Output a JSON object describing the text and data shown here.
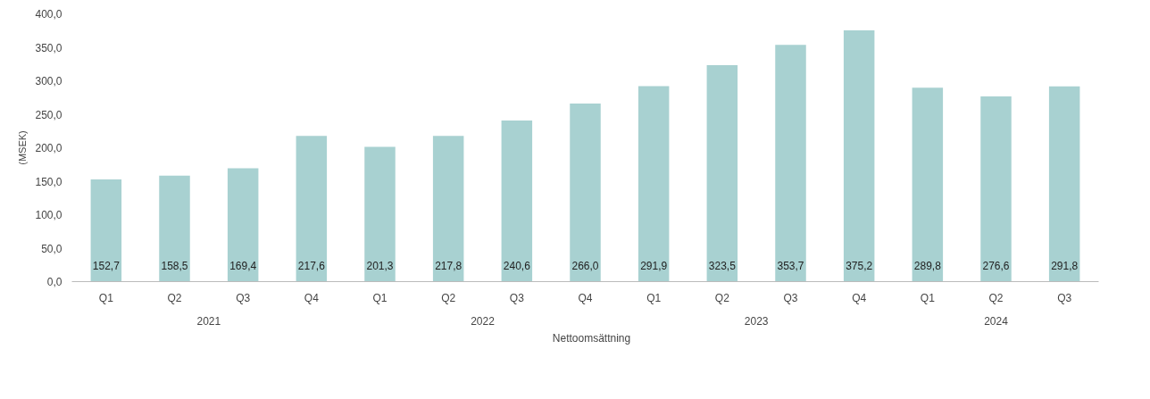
{
  "chart_data": {
    "type": "bar",
    "ylabel": "(MSEK)",
    "categories": [
      "Q1",
      "Q2",
      "Q3",
      "Q4",
      "Q1",
      "Q2",
      "Q3",
      "Q4",
      "Q1",
      "Q2",
      "Q3",
      "Q4",
      "Q1",
      "Q2",
      "Q3"
    ],
    "series": [
      {
        "name": "Nettoomsättning",
        "color": "#a8d1d1",
        "values": [
          152.7,
          158.5,
          169.4,
          217.6,
          201.3,
          217.8,
          240.6,
          266.0,
          291.9,
          323.5,
          353.7,
          375.2,
          289.8,
          276.6,
          291.8
        ],
        "value_labels": [
          "152,7",
          "158,5",
          "169,4",
          "217,6",
          "201,3",
          "217,8",
          "240,6",
          "266,0",
          "291,9",
          "323,5",
          "353,7",
          "375,2",
          "289,8",
          "276,6",
          "291,8"
        ]
      }
    ],
    "annotations": [
      "2021",
      "2022",
      "2023",
      "2024"
    ],
    "ylim": [
      0,
      400
    ],
    "yticks": [
      {
        "value": 0,
        "label": "0,0"
      },
      {
        "value": 50,
        "label": "50,0"
      },
      {
        "value": 100,
        "label": "100,0"
      },
      {
        "value": 150,
        "label": "150,0"
      },
      {
        "value": 200,
        "label": "200,0"
      },
      {
        "value": 250,
        "label": "250,0"
      },
      {
        "value": 300,
        "label": "300,0"
      },
      {
        "value": 350,
        "label": "350,0"
      },
      {
        "value": 400,
        "label": "400,0"
      }
    ],
    "grid": false,
    "legend": "bottom"
  }
}
